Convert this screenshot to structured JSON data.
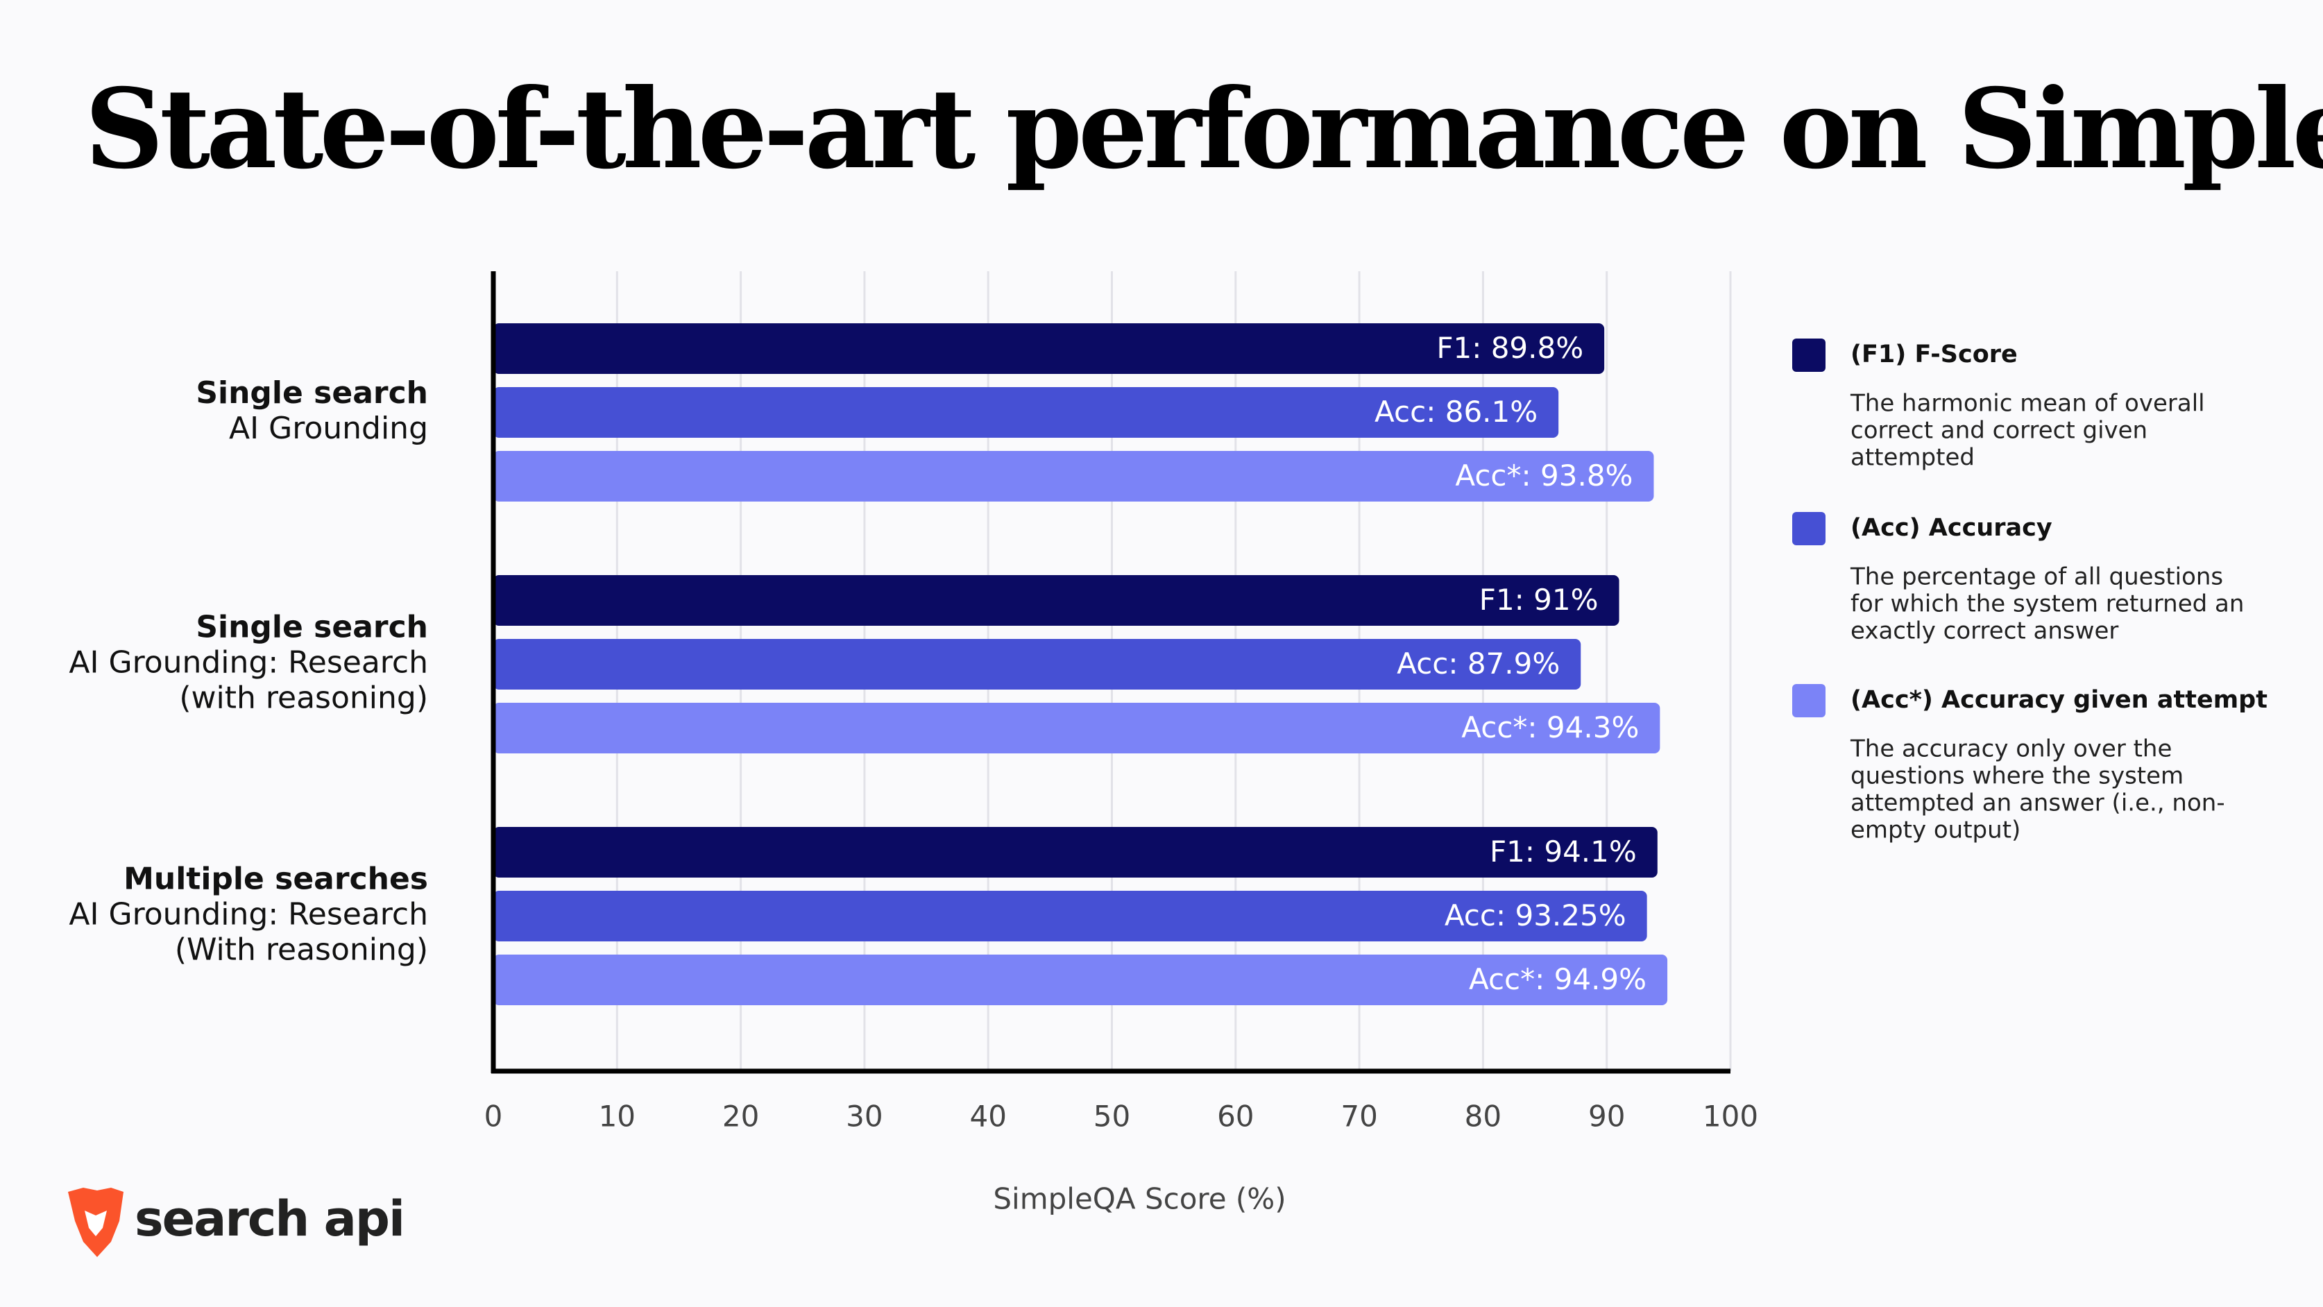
{
  "chart_data": {
    "type": "hbar",
    "title": "State-of-the-art performance on SimpleQA",
    "categories": [
      {
        "title": "Single search",
        "lines": [
          "AI Grounding"
        ]
      },
      {
        "title": "Single search",
        "lines": [
          "AI Grounding: Research",
          "(with reasoning)"
        ]
      },
      {
        "title": "Multiple searches",
        "lines": [
          "AI Grounding: Research",
          "(With reasoning)"
        ]
      }
    ],
    "series": [
      {
        "name": "(F1) F-Score",
        "color": "#0b0b63",
        "values": [
          89.8,
          91,
          94.1
        ],
        "value_labels": [
          "F1: 89.8%",
          "F1: 91%",
          "F1: 94.1%"
        ],
        "description": [
          "The harmonic mean of overall",
          "correct and correct given",
          "attempted"
        ]
      },
      {
        "name": "(Acc) Accuracy",
        "color": "#4650d4",
        "values": [
          86.1,
          87.9,
          93.25
        ],
        "value_labels": [
          "Acc: 86.1%",
          "Acc: 87.9%",
          "Acc: 93.25%"
        ],
        "description": [
          "The percentage of all questions",
          "for which the system returned an",
          "exactly correct answer"
        ]
      },
      {
        "name": "(Acc*) Accuracy given attempt",
        "color": "#7b83f7",
        "values": [
          93.8,
          94.3,
          94.9
        ],
        "value_labels": [
          "Acc*: 93.8%",
          "Acc*: 94.3%",
          "Acc*: 94.9%"
        ],
        "description": [
          "The accuracy only over the",
          "questions where the system",
          "attempted an answer (i.e., non-",
          "empty output)"
        ]
      }
    ],
    "xlim": [
      0,
      100
    ],
    "xticks": [
      0,
      10,
      20,
      30,
      40,
      50,
      60,
      70,
      80,
      90,
      100
    ],
    "xlabel": "SimpleQA Score (%)",
    "grid": true,
    "legend": "right",
    "brand": "search api"
  }
}
